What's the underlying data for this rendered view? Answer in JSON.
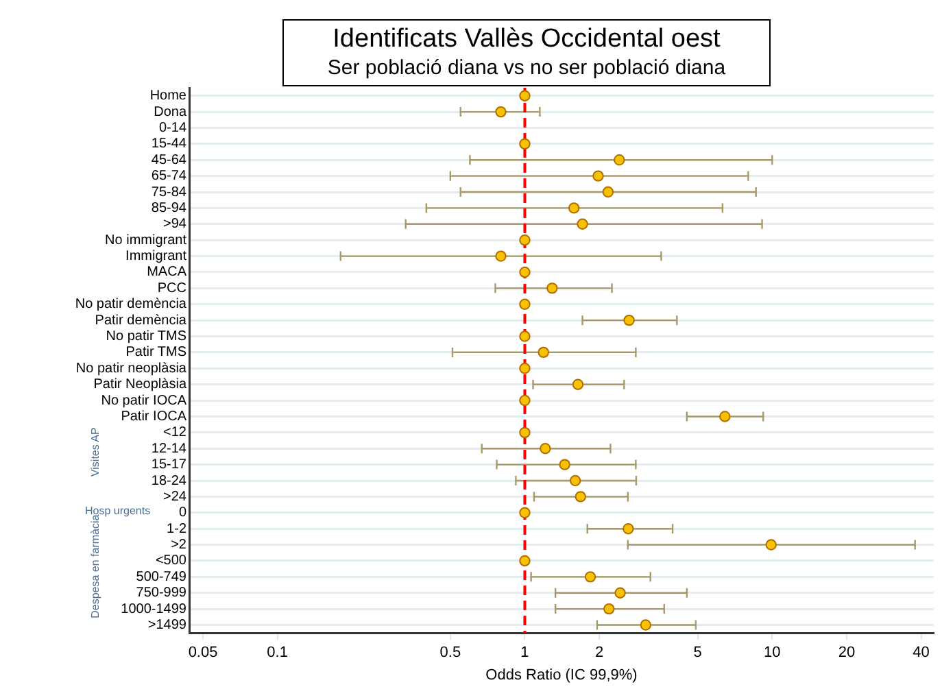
{
  "chart_data": {
    "type": "scatter",
    "title": "Identificats Vallès Occidental oest",
    "subtitle": "Ser població diana vs no ser població diana",
    "xlabel": "Odds Ratio (IC 99,9%)",
    "categories": [
      "Home",
      "Dona",
      "0-14",
      "15-44",
      "45-64",
      "65-74",
      "75-84",
      "85-94",
      ">94",
      "No immigrant",
      "Immigrant",
      "MACA",
      "PCC",
      "No patir demència",
      "Patir demència",
      "No patir TMS",
      "Patir TMS",
      "No patir neoplàsia",
      "Patir Neoplàsia",
      "No patir IOCA",
      "Patir IOCA",
      "<12",
      "12-14",
      "15-17",
      "18-24",
      ">24",
      "0",
      "1-2",
      ">2",
      "<500",
      "500-749",
      "750-999",
      "1000-1499",
      ">1499"
    ],
    "values": [
      1,
      0.8,
      null,
      1,
      2.41,
      1.98,
      2.17,
      1.58,
      1.71,
      1,
      0.8,
      1,
      1.29,
      1,
      2.64,
      1,
      1.19,
      1,
      1.64,
      1,
      6.44,
      1,
      1.21,
      1.45,
      1.6,
      1.68,
      1,
      2.62,
      9.9,
      1,
      1.84,
      2.43,
      2.19,
      3.08
    ],
    "errors": [
      null,
      [
        0.55,
        1.15
      ],
      null,
      null,
      [
        0.6,
        10
      ],
      [
        0.5,
        8
      ],
      [
        0.55,
        8.6
      ],
      [
        0.4,
        6.3
      ],
      [
        0.33,
        9.1
      ],
      null,
      [
        0.18,
        3.56
      ],
      null,
      [
        0.76,
        2.25
      ],
      null,
      [
        1.71,
        4.12
      ],
      null,
      [
        0.51,
        2.81
      ],
      null,
      [
        1.08,
        2.52
      ],
      null,
      [
        4.52,
        9.2
      ],
      null,
      [
        0.67,
        2.22
      ],
      [
        0.77,
        2.81
      ],
      [
        0.92,
        2.82
      ],
      [
        1.09,
        2.61
      ],
      null,
      [
        1.79,
        3.96
      ],
      [
        2.61,
        37.8
      ],
      null,
      [
        1.06,
        3.22
      ],
      [
        1.33,
        4.52
      ],
      [
        1.33,
        3.66
      ],
      [
        1.96,
        4.91
      ]
    ],
    "color": "#f7c200",
    "orientation": "horizontal",
    "log": "x",
    "xlim": [
      0.044,
      45
    ],
    "xticks": [
      0.05,
      0.1,
      0.5,
      1,
      2,
      5,
      10,
      20,
      40
    ],
    "grid": "y",
    "marker": "circle",
    "ref_lines": [
      {
        "axis": "x",
        "value": 1,
        "color": "#ff0000",
        "line_style": "dashed"
      }
    ],
    "annotations": [
      "Visites AP",
      "Hosp urgents",
      "Despesa en farmàcia"
    ]
  }
}
